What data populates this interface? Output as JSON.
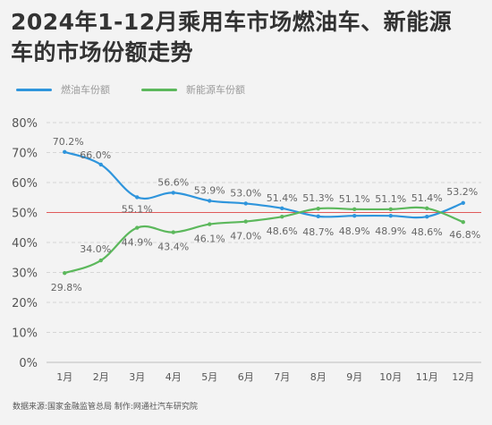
{
  "title_line1": "2024年1-12月乘用车市场燃油车、新能源",
  "title_line2": "车的市场份额走势",
  "source": "数据来源:国家金融监管总局 制作:网通社汽车研究院",
  "colors": {
    "fuel": "#2f95dc",
    "nev": "#5cb85c",
    "reference_line": "#e05a5a",
    "grid": "#d6d6d6",
    "axis_text": "#555555",
    "label_text": "#666666"
  },
  "chart_data": {
    "type": "line",
    "title": "2024年1-12月乘用车市场燃油车、新能源车的市场份额走势",
    "categories": [
      "1月",
      "2月",
      "3月",
      "4月",
      "5月",
      "6月",
      "7月",
      "8月",
      "9月",
      "10月",
      "11月",
      "12月"
    ],
    "series": [
      {
        "name": "燃油车份额",
        "color": "#2f95dc",
        "values": [
          70.2,
          66.0,
          55.1,
          56.6,
          53.9,
          53.0,
          51.4,
          48.7,
          48.9,
          48.9,
          48.6,
          53.2
        ],
        "labels": [
          "70.2%",
          "66.0%",
          "55.1%",
          "56.6%",
          "53.9%",
          "53.0%",
          "51.4%",
          null,
          null,
          null,
          null,
          "53.2%"
        ]
      },
      {
        "name": "新能源车份额",
        "color": "#5cb85c",
        "values": [
          29.8,
          34.0,
          44.9,
          43.4,
          46.1,
          47.0,
          48.6,
          51.3,
          51.1,
          51.1,
          51.4,
          46.8
        ],
        "labels": [
          "29.8%",
          "34.0%",
          "44.9%",
          "43.4%",
          "46.1%",
          "47.0%",
          "48.6%",
          "51.3%",
          "51.1%",
          "51.1%",
          "51.4%",
          "46.8%"
        ]
      }
    ],
    "extra_labels": [
      "48.7%",
      "48.9%",
      "48.9%",
      "48.6%"
    ],
    "ylim": [
      0,
      80
    ],
    "yticks": [
      "0%",
      "10%",
      "20%",
      "30%",
      "40%",
      "50%",
      "60%",
      "70%",
      "80%"
    ],
    "reference_line": 50,
    "grid": true,
    "legend_position": "top-left"
  }
}
